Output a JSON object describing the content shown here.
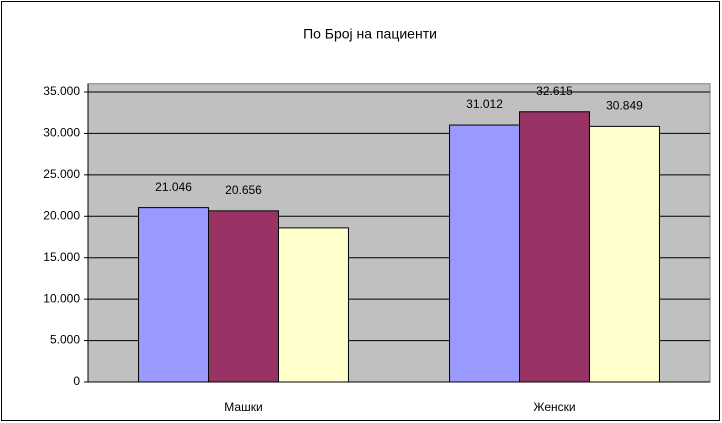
{
  "chart_data": {
    "type": "bar",
    "title": "По Број на пациенти",
    "categories": [
      "Машки",
      "Женски"
    ],
    "series": [
      {
        "color": "#9999ff",
        "values": [
          21046,
          31012
        ],
        "value_labels": [
          "21.046",
          "31.012"
        ]
      },
      {
        "color": "#993366",
        "values": [
          20656,
          32615
        ],
        "value_labels": [
          "20.656",
          "32.615"
        ]
      },
      {
        "color": "#ffffcc",
        "values": [
          18600,
          30849
        ],
        "value_labels": [
          null,
          "30.849"
        ]
      }
    ],
    "ylim": [
      0,
      36000
    ],
    "yticks": [
      0,
      {
        "value": 5000,
        "label": "5.000"
      },
      {
        "value": 10000,
        "label": "10.000"
      },
      {
        "value": 15000,
        "label": "15.000"
      },
      {
        "value": 20000,
        "label": "20.000"
      },
      {
        "value": 25000,
        "label": "25.000"
      },
      {
        "value": 30000,
        "label": "30.000"
      },
      {
        "value": 35000,
        "label": "35.000"
      }
    ],
    "grid": true
  }
}
